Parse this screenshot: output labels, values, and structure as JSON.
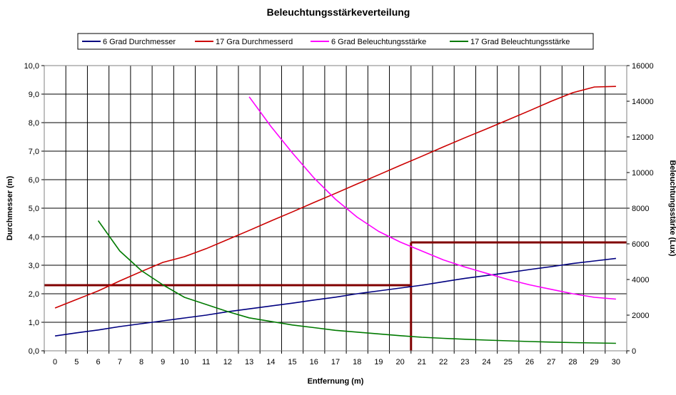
{
  "chart_data": {
    "type": "line",
    "title": "Beleuchtungsstärkeverteilung",
    "xlabel": "Entfernung (m)",
    "ylabel": "Durchmesser (m)",
    "y2label": "Beleuchtungsstärke (Lux)",
    "ylim": [
      0,
      10
    ],
    "y2lim": [
      0,
      16000
    ],
    "grid": true,
    "legend_position": "top",
    "x_categories": [
      "0",
      "5",
      "6",
      "7",
      "8",
      "9",
      "10",
      "11",
      "12",
      "13",
      "14",
      "15",
      "16",
      "17",
      "18",
      "19",
      "20",
      "21",
      "22",
      "23",
      "24",
      "25",
      "26",
      "27",
      "28",
      "29",
      "30"
    ],
    "y_ticks": [
      "0,0",
      "1,0",
      "2,0",
      "3,0",
      "4,0",
      "5,0",
      "6,0",
      "7,0",
      "8,0",
      "9,0",
      "10,0"
    ],
    "y2_ticks": [
      "0",
      "2000",
      "4000",
      "6000",
      "8000",
      "10000",
      "12000",
      "14000",
      "16000"
    ],
    "series": [
      {
        "name": "6 Grad Durchmesser",
        "axis": "left",
        "color": "#000080",
        "x": [
          "0",
          "5",
          "6",
          "7",
          "8",
          "9",
          "10",
          "11",
          "12",
          "13",
          "14",
          "15",
          "16",
          "17",
          "18",
          "19",
          "20",
          "21",
          "22",
          "23",
          "24",
          "25",
          "26",
          "27",
          "28",
          "29",
          "30"
        ],
        "y": [
          0.52,
          0.63,
          0.73,
          0.85,
          0.95,
          1.05,
          1.15,
          1.25,
          1.37,
          1.47,
          1.57,
          1.67,
          1.78,
          1.88,
          2.0,
          2.1,
          2.2,
          2.3,
          2.42,
          2.54,
          2.64,
          2.74,
          2.85,
          2.95,
          3.06,
          3.15,
          3.24
        ]
      },
      {
        "name": "17 Gra Durchmesserd",
        "axis": "left",
        "color": "#CC0000",
        "x": [
          "0",
          "5",
          "6",
          "7",
          "8",
          "9",
          "10",
          "11",
          "12",
          "13",
          "14",
          "15",
          "16",
          "17",
          "18",
          "19",
          "20",
          "21",
          "22",
          "23",
          "24",
          "25",
          "26",
          "27",
          "28",
          "29",
          "30"
        ],
        "y": [
          1.5,
          1.8,
          2.1,
          2.45,
          2.78,
          3.1,
          3.3,
          3.58,
          3.9,
          4.22,
          4.55,
          4.87,
          5.2,
          5.52,
          5.85,
          6.17,
          6.5,
          6.82,
          7.15,
          7.47,
          7.78,
          8.1,
          8.42,
          8.75,
          9.05,
          9.25,
          9.27
        ]
      },
      {
        "name": "6 Grad Beleuchtungsstärke",
        "axis": "right",
        "color": "#FF00FF",
        "x": [
          "13",
          "14",
          "15",
          "16",
          "17",
          "18",
          "19",
          "20",
          "21",
          "22",
          "23",
          "24",
          "25",
          "26",
          "27",
          "28",
          "29",
          "30"
        ],
        "y": [
          14250,
          12600,
          11100,
          9700,
          8500,
          7500,
          6700,
          6100,
          5600,
          5100,
          4700,
          4350,
          4000,
          3700,
          3450,
          3200,
          3000,
          2900
        ]
      },
      {
        "name": "17 Grad Beleuchtungsstärke",
        "axis": "right",
        "color": "#007A00",
        "x": [
          "6",
          "7",
          "8",
          "9",
          "10",
          "11",
          "12",
          "13",
          "14",
          "15",
          "16",
          "17",
          "18",
          "19",
          "20",
          "21",
          "22",
          "23",
          "24",
          "25",
          "26",
          "27",
          "28",
          "29",
          "30"
        ],
        "y": [
          7300,
          5600,
          4500,
          3700,
          3000,
          2600,
          2200,
          1850,
          1650,
          1450,
          1300,
          1150,
          1050,
          950,
          850,
          760,
          700,
          650,
          600,
          560,
          520,
          490,
          460,
          440,
          420
        ]
      }
    ],
    "reference_lines": [
      {
        "color": "#800000",
        "axis": "left",
        "from_x": "0",
        "to_x": "20.5",
        "y": 2.3
      },
      {
        "color": "#800000",
        "axis": "left",
        "from_x": "20.5",
        "to_x": "30",
        "y": 3.8
      },
      {
        "color": "#800000",
        "axis": "left",
        "x": "20.5",
        "from_y": 0,
        "to_y": 3.8
      }
    ]
  }
}
